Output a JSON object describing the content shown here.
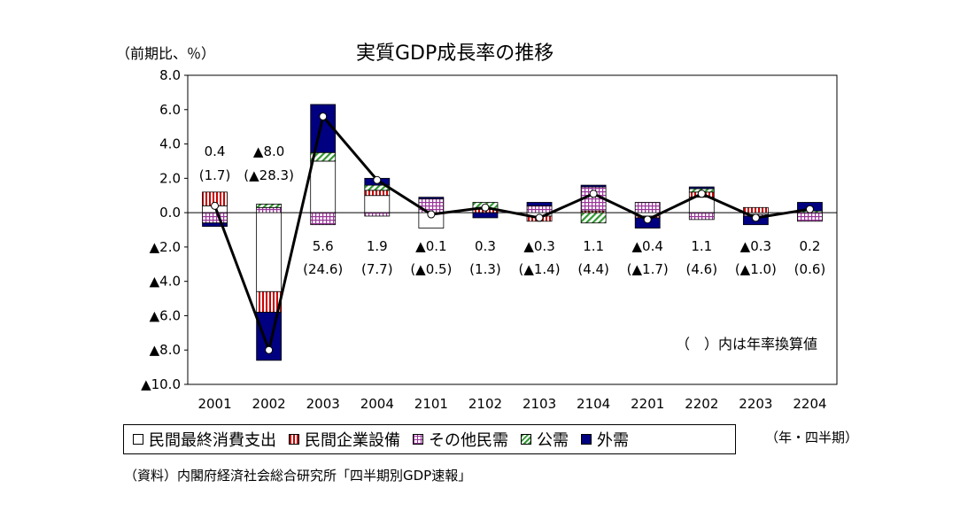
{
  "title": "実質GDP成長率の推移",
  "y_unit_label": "（前期比、％）",
  "x_unit_label": "（年・四半期）",
  "note": "（　）内は年率換算値",
  "source": "（資料）内閣府経済社会総合研究所「四半期別GDP速報」",
  "colors": {
    "consumption": "#ffffff",
    "investment": "#cc0000",
    "other": "#993399",
    "public": "#339933",
    "external": "#000080",
    "line": "#000000"
  },
  "chart_data": {
    "type": "bar",
    "stacked": true,
    "title": "実質GDP成長率の推移",
    "ylabel": "（前期比、％）",
    "xlabel": "（年・四半期）",
    "ylim": [
      -10,
      8
    ],
    "yticks": [
      8,
      6,
      4,
      2,
      0,
      -2,
      -4,
      -6,
      -8,
      -10
    ],
    "ytick_labels": [
      "8.0",
      "6.0",
      "4.0",
      "2.0",
      "0.0",
      "▲2.0",
      "▲4.0",
      "▲6.0",
      "▲8.0",
      "▲10.0"
    ],
    "categories": [
      "2001",
      "2002",
      "2003",
      "2004",
      "2101",
      "2102",
      "2103",
      "2104",
      "2201",
      "2202",
      "2203",
      "2204"
    ],
    "grid": false,
    "legend_position": "bottom",
    "series": [
      {
        "name": "民間最終消費支出",
        "key": "consumption",
        "pattern": "white",
        "values": [
          0.4,
          -4.6,
          3.0,
          1.0,
          -0.9,
          0.0,
          -0.2,
          0.0,
          -0.2,
          0.9,
          -0.1,
          0.0
        ]
      },
      {
        "name": "民間企業設備",
        "key": "investment",
        "pattern": "vstripe",
        "values": [
          0.8,
          -1.2,
          0.0,
          0.3,
          0.0,
          0.2,
          -0.3,
          0.1,
          -0.1,
          0.3,
          0.3,
          0.0
        ]
      },
      {
        "name": "その他民需",
        "key": "other",
        "pattern": "grid",
        "values": [
          -0.6,
          0.3,
          -0.7,
          -0.2,
          0.8,
          0.0,
          0.4,
          1.4,
          0.6,
          -0.4,
          -0.1,
          -0.5
        ]
      },
      {
        "name": "公需",
        "key": "public",
        "pattern": "diag",
        "values": [
          0.0,
          0.2,
          0.5,
          0.3,
          0.0,
          0.4,
          0.0,
          -0.6,
          0.0,
          0.2,
          0.0,
          0.1
        ]
      },
      {
        "name": "外需",
        "key": "external",
        "pattern": "solid",
        "values": [
          -0.2,
          -2.8,
          2.8,
          0.4,
          0.1,
          -0.3,
          0.2,
          0.1,
          -0.6,
          0.1,
          -0.5,
          0.5
        ]
      }
    ],
    "line": {
      "name": "GDP成長率",
      "values": [
        0.4,
        -8.0,
        5.6,
        1.9,
        -0.1,
        0.3,
        -0.3,
        1.1,
        -0.4,
        1.1,
        -0.3,
        0.2
      ]
    },
    "value_labels": [
      "0.4",
      "▲8.0",
      "5.6",
      "1.9",
      "▲0.1",
      "0.3",
      "▲0.3",
      "1.1",
      "▲0.4",
      "1.1",
      "▲0.3",
      "0.2"
    ],
    "annualized_labels": [
      "(1.7)",
      "(▲28.3)",
      "(24.6)",
      "(7.7)",
      "(▲0.5)",
      "(1.3)",
      "(▲1.4)",
      "(4.4)",
      "(▲1.7)",
      "(4.6)",
      "(▲1.0)",
      "(0.6)"
    ]
  }
}
